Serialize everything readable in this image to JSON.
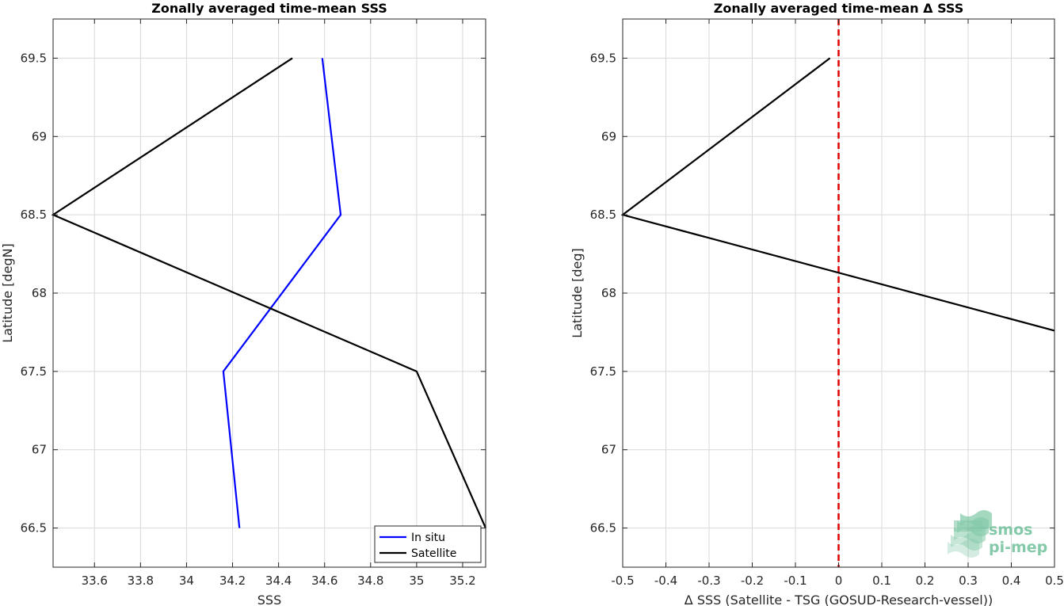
{
  "colors": {
    "in_situ": "#0000ff",
    "satellite": "#000000",
    "zero_line": "#e00000",
    "grid": "#d9d9d9",
    "logo": "#5cb88c"
  },
  "logo": {
    "line1": "smos",
    "line2": "pi-mep"
  },
  "chart_data": [
    {
      "type": "line",
      "title": "Zonally averaged time-mean SSS",
      "xlabel": "SSS",
      "ylabel": "Latitude [degN]",
      "xlim": [
        33.42,
        35.3
      ],
      "ylim": [
        66.25,
        69.75
      ],
      "xticks": [
        33.6,
        33.8,
        34,
        34.2,
        34.4,
        34.6,
        34.8,
        35,
        35.2
      ],
      "xtick_labels": [
        "33.6",
        "33.8",
        "34",
        "34.2",
        "34.4",
        "34.6",
        "34.8",
        "35",
        "35.2"
      ],
      "yticks": [
        66.5,
        67,
        67.5,
        68,
        68.5,
        69,
        69.5
      ],
      "ytick_labels": [
        "66.5",
        "67",
        "67.5",
        "68",
        "68.5",
        "69",
        "69.5"
      ],
      "grid": true,
      "legend_position": "bottom-right",
      "series": [
        {
          "name": "In situ",
          "color_key": "in_situ",
          "points": [
            [
              34.23,
              66.5
            ],
            [
              34.16,
              67.5
            ],
            [
              34.67,
              68.5
            ],
            [
              34.59,
              69.5
            ]
          ]
        },
        {
          "name": "Satellite",
          "color_key": "satellite",
          "points": [
            [
              35.3,
              66.5
            ],
            [
              35.0,
              67.5
            ],
            [
              33.42,
              68.5
            ],
            [
              34.46,
              69.5
            ]
          ]
        }
      ]
    },
    {
      "type": "line",
      "title": "Zonally averaged time-mean Δ SSS",
      "xlabel": "Δ SSS (Satellite - TSG (GOSUD-Research-vessel))",
      "ylabel": "Latitude [deg]",
      "xlim": [
        -0.5,
        0.5
      ],
      "ylim": [
        66.25,
        69.75
      ],
      "xticks": [
        -0.5,
        -0.4,
        -0.3,
        -0.2,
        -0.1,
        0,
        0.1,
        0.2,
        0.3,
        0.4,
        0.5
      ],
      "xtick_labels": [
        "-0.5",
        "-0.4",
        "-0.3",
        "-0.2",
        "-0.1",
        "0",
        "0.1",
        "0.2",
        "0.3",
        "0.4",
        "0.5"
      ],
      "yticks": [
        66.5,
        67,
        67.5,
        68,
        68.5,
        69,
        69.5
      ],
      "ytick_labels": [
        "66.5",
        "67",
        "67.5",
        "68",
        "68.5",
        "69",
        "69.5"
      ],
      "grid": true,
      "reference_line_x": 0,
      "series": [
        {
          "color_key": "satellite",
          "points": [
            [
              0.5,
              67.76
            ],
            [
              -0.5,
              68.5
            ],
            [
              -0.02,
              69.5
            ]
          ]
        }
      ]
    }
  ]
}
